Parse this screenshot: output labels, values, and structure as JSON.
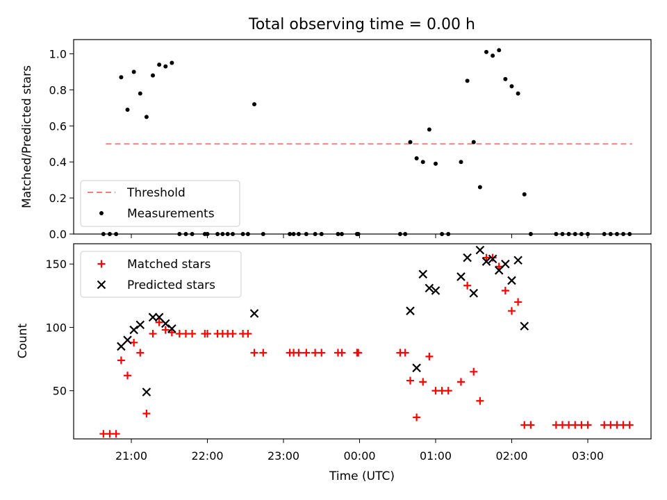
{
  "chart_data": [
    {
      "type": "scatter",
      "title": "Total observing time = 0.00 h",
      "xlabel": "",
      "ylabel": "Matched/Predicted stars",
      "ylim": [
        0,
        1.08
      ],
      "yticks": [
        "0.0",
        "0.2",
        "0.4",
        "0.6",
        "0.8",
        "1.0"
      ],
      "legend": {
        "placement": "lower-left",
        "entries": [
          "Threshold",
          "Measurements"
        ]
      },
      "threshold": {
        "name": "Threshold",
        "value": 0.5,
        "x_start": "20:40",
        "x_end": "03:35",
        "color": "#f08080",
        "style": "dashed"
      },
      "series": [
        {
          "name": "Measurements",
          "color": "#000000",
          "points": [
            [
              "20:38",
              0.0
            ],
            [
              "20:43",
              0.0
            ],
            [
              "20:48",
              0.0
            ],
            [
              "20:52",
              0.87
            ],
            [
              "20:57",
              0.69
            ],
            [
              "21:02",
              0.9
            ],
            [
              "21:07",
              0.78
            ],
            [
              "21:12",
              0.65
            ],
            [
              "21:17",
              0.88
            ],
            [
              "21:22",
              0.94
            ],
            [
              "21:27",
              0.93
            ],
            [
              "21:32",
              0.95
            ],
            [
              "21:38",
              0.0
            ],
            [
              "21:43",
              0.0
            ],
            [
              "21:48",
              0.0
            ],
            [
              "21:58",
              0.0
            ],
            [
              "22:00",
              0.0
            ],
            [
              "22:08",
              0.0
            ],
            [
              "22:12",
              0.0
            ],
            [
              "22:16",
              0.0
            ],
            [
              "22:20",
              0.0
            ],
            [
              "22:28",
              0.0
            ],
            [
              "22:32",
              0.0
            ],
            [
              "22:37",
              0.72
            ],
            [
              "22:44",
              0.0
            ],
            [
              "23:05",
              0.0
            ],
            [
              "23:08",
              0.0
            ],
            [
              "23:12",
              0.0
            ],
            [
              "23:18",
              0.0
            ],
            [
              "23:25",
              0.0
            ],
            [
              "23:30",
              0.0
            ],
            [
              "23:43",
              0.0
            ],
            [
              "23:46",
              0.0
            ],
            [
              "23:58",
              0.0
            ],
            [
              "23:59",
              0.0
            ],
            [
              "00:32",
              0.0
            ],
            [
              "00:36",
              0.0
            ],
            [
              "00:40",
              0.51
            ],
            [
              "00:45",
              0.42
            ],
            [
              "00:50",
              0.4
            ],
            [
              "00:55",
              0.58
            ],
            [
              "01:00",
              0.39
            ],
            [
              "01:05",
              0.0
            ],
            [
              "01:10",
              0.0
            ],
            [
              "01:20",
              0.4
            ],
            [
              "01:25",
              0.85
            ],
            [
              "01:30",
              0.51
            ],
            [
              "01:35",
              0.26
            ],
            [
              "01:40",
              1.01
            ],
            [
              "01:45",
              0.99
            ],
            [
              "01:50",
              1.02
            ],
            [
              "01:55",
              0.86
            ],
            [
              "02:00",
              0.82
            ],
            [
              "02:05",
              0.78
            ],
            [
              "02:10",
              0.22
            ],
            [
              "02:15",
              0.0
            ],
            [
              "02:35",
              0.0
            ],
            [
              "02:40",
              0.0
            ],
            [
              "02:45",
              0.0
            ],
            [
              "02:50",
              0.0
            ],
            [
              "02:55",
              0.0
            ],
            [
              "03:00",
              0.0
            ],
            [
              "03:13",
              0.0
            ],
            [
              "03:18",
              0.0
            ],
            [
              "03:23",
              0.0
            ],
            [
              "03:28",
              0.0
            ],
            [
              "03:33",
              0.0
            ]
          ]
        }
      ]
    },
    {
      "type": "scatter",
      "title": "",
      "xlabel": "Time (UTC)",
      "ylabel": "Count",
      "ylim": [
        12,
        166
      ],
      "yticks": [
        "50",
        "100",
        "150"
      ],
      "xticks": [
        "21:00",
        "22:00",
        "23:00",
        "00:00",
        "01:00",
        "02:00",
        "03:00"
      ],
      "legend": {
        "placement": "top-left",
        "entries": [
          "Matched stars",
          "Predicted stars"
        ]
      },
      "series": [
        {
          "name": "Matched stars",
          "marker": "+",
          "color": "#ff0000",
          "points": [
            [
              "20:38",
              16
            ],
            [
              "20:43",
              16
            ],
            [
              "20:48",
              16
            ],
            [
              "20:52",
              74
            ],
            [
              "20:57",
              62
            ],
            [
              "21:02",
              88
            ],
            [
              "21:07",
              80
            ],
            [
              "21:12",
              32
            ],
            [
              "21:17",
              95
            ],
            [
              "21:22",
              104
            ],
            [
              "21:27",
              98
            ],
            [
              "21:32",
              96
            ],
            [
              "21:38",
              95
            ],
            [
              "21:43",
              95
            ],
            [
              "21:48",
              95
            ],
            [
              "21:58",
              95
            ],
            [
              "22:00",
              95
            ],
            [
              "22:08",
              95
            ],
            [
              "22:12",
              95
            ],
            [
              "22:16",
              95
            ],
            [
              "22:20",
              95
            ],
            [
              "22:28",
              95
            ],
            [
              "22:32",
              95
            ],
            [
              "22:37",
              80
            ],
            [
              "22:44",
              80
            ],
            [
              "23:05",
              80
            ],
            [
              "23:08",
              80
            ],
            [
              "23:12",
              80
            ],
            [
              "23:18",
              80
            ],
            [
              "23:25",
              80
            ],
            [
              "23:30",
              80
            ],
            [
              "23:43",
              80
            ],
            [
              "23:46",
              80
            ],
            [
              "23:58",
              80
            ],
            [
              "23:59",
              80
            ],
            [
              "00:32",
              80
            ],
            [
              "00:36",
              80
            ],
            [
              "00:40",
              58
            ],
            [
              "00:45",
              29
            ],
            [
              "00:50",
              57
            ],
            [
              "00:55",
              77
            ],
            [
              "01:00",
              50
            ],
            [
              "01:05",
              50
            ],
            [
              "01:10",
              50
            ],
            [
              "01:20",
              57
            ],
            [
              "01:25",
              133
            ],
            [
              "01:30",
              65
            ],
            [
              "01:35",
              42
            ],
            [
              "01:40",
              155
            ],
            [
              "01:45",
              155
            ],
            [
              "01:50",
              148
            ],
            [
              "01:55",
              129
            ],
            [
              "02:00",
              113
            ],
            [
              "02:05",
              120
            ],
            [
              "02:10",
              23
            ],
            [
              "02:15",
              23
            ],
            [
              "02:35",
              23
            ],
            [
              "02:40",
              23
            ],
            [
              "02:45",
              23
            ],
            [
              "02:50",
              23
            ],
            [
              "02:55",
              23
            ],
            [
              "03:00",
              23
            ],
            [
              "03:13",
              23
            ],
            [
              "03:18",
              23
            ],
            [
              "03:23",
              23
            ],
            [
              "03:28",
              23
            ],
            [
              "03:33",
              23
            ]
          ]
        },
        {
          "name": "Predicted stars",
          "marker": "x",
          "color": "#000000",
          "points": [
            [
              "20:52",
              85
            ],
            [
              "20:57",
              90
            ],
            [
              "21:02",
              98
            ],
            [
              "21:07",
              102
            ],
            [
              "21:12",
              49
            ],
            [
              "21:17",
              108
            ],
            [
              "21:22",
              108
            ],
            [
              "21:27",
              103
            ],
            [
              "21:32",
              99
            ],
            [
              "22:37",
              111
            ],
            [
              "00:40",
              113
            ],
            [
              "00:45",
              68
            ],
            [
              "00:50",
              142
            ],
            [
              "00:55",
              131
            ],
            [
              "01:00",
              129
            ],
            [
              "01:20",
              140
            ],
            [
              "01:25",
              155
            ],
            [
              "01:30",
              127
            ],
            [
              "01:35",
              161
            ],
            [
              "01:40",
              152
            ],
            [
              "01:45",
              154
            ],
            [
              "01:50",
              145
            ],
            [
              "01:55",
              150
            ],
            [
              "02:00",
              137
            ],
            [
              "02:05",
              153
            ],
            [
              "02:10",
              101
            ]
          ]
        }
      ]
    }
  ]
}
